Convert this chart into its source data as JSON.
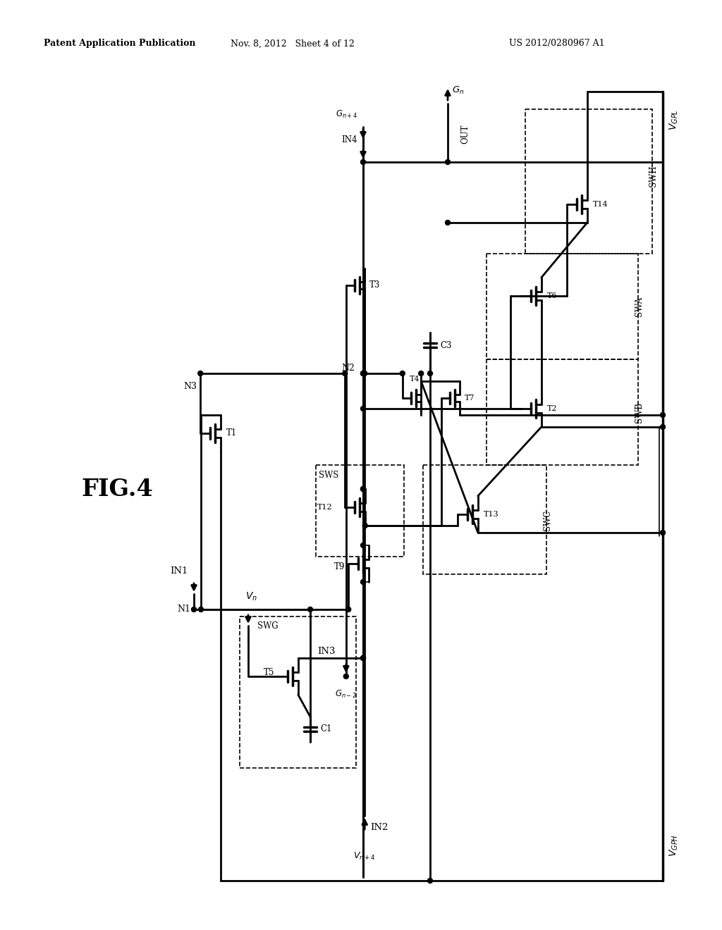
{
  "bg_color": "#ffffff",
  "line_color": "#000000",
  "header_left": "Patent Application Publication",
  "header_mid": "Nov. 8, 2012   Sheet 4 of 12",
  "header_right": "US 2012/0280967 A1",
  "fig_label": "FIG.4"
}
